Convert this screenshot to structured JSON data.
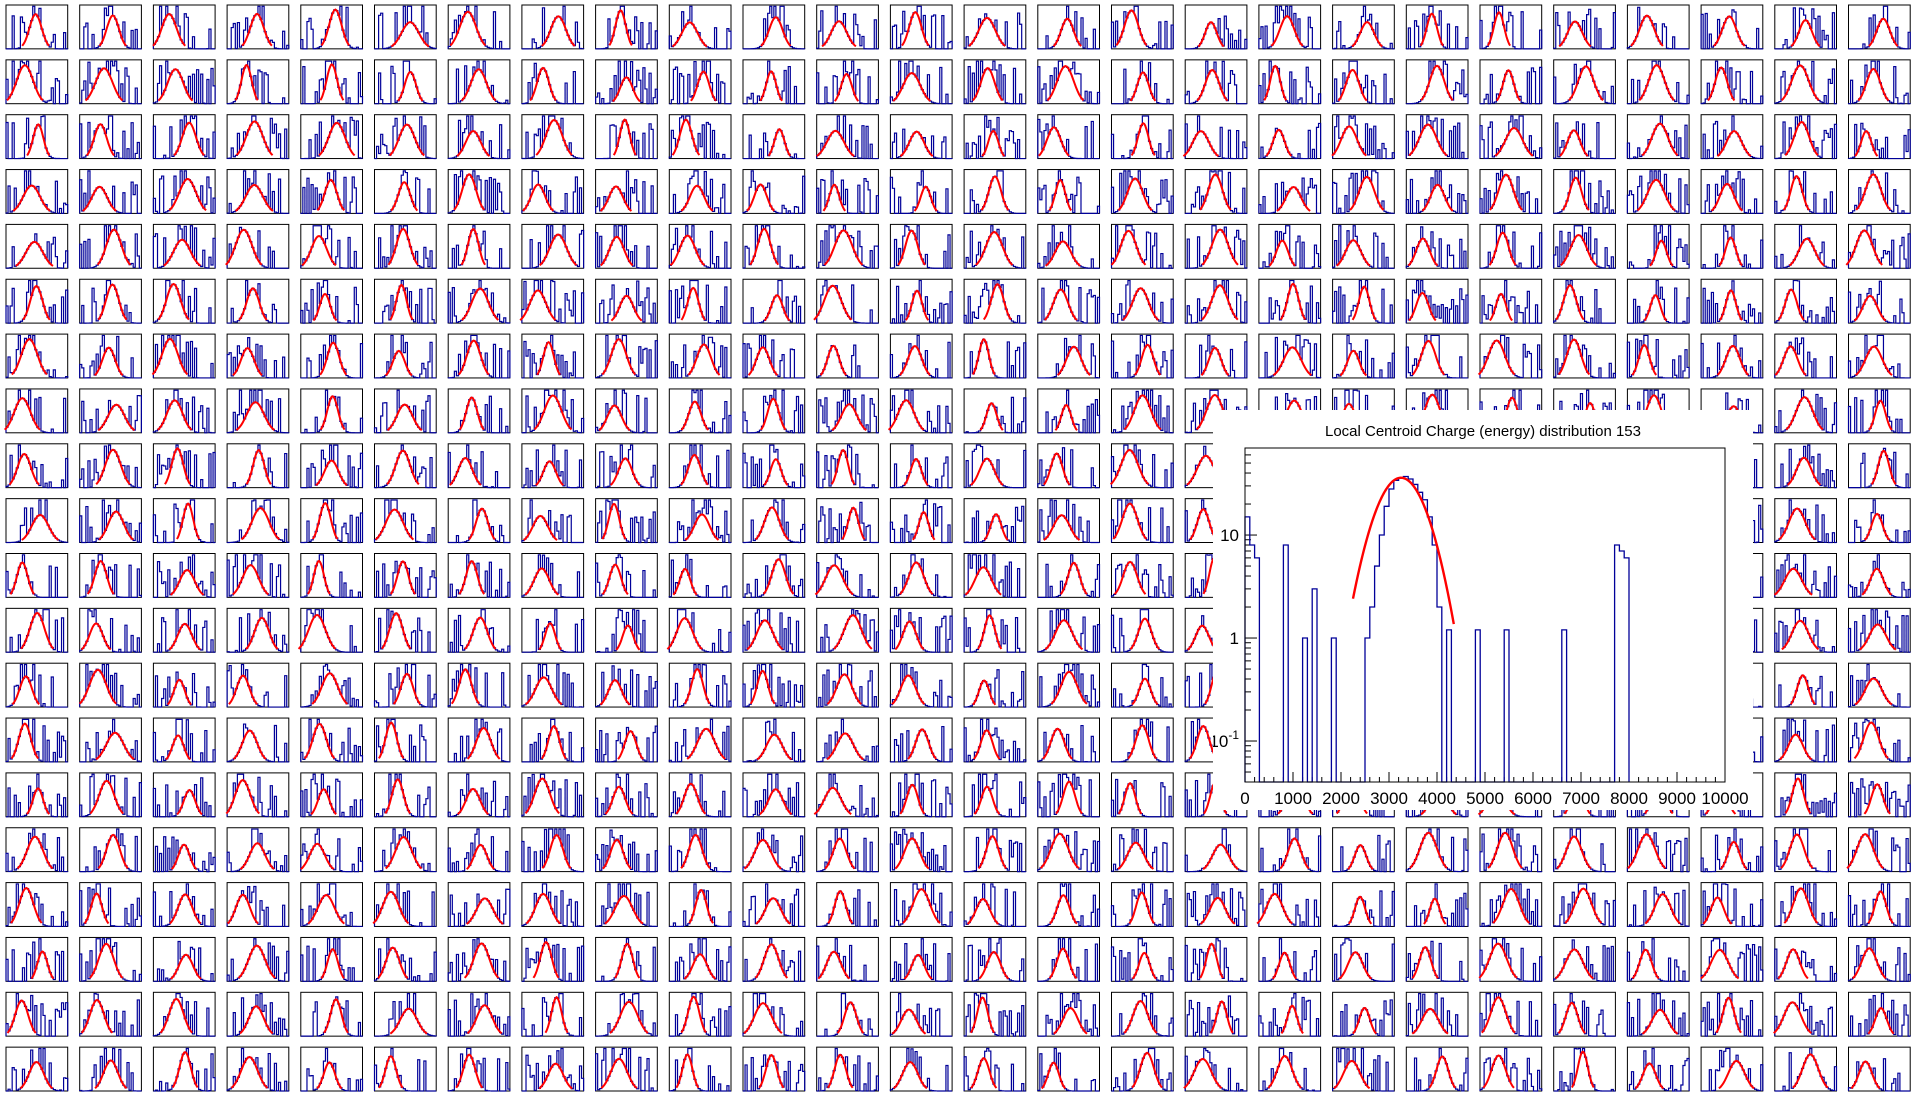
{
  "colors": {
    "histogram": "#000099",
    "fit": "#ff0000",
    "frame": "#000000",
    "background": "#ffffff"
  },
  "grid": {
    "rows": 20,
    "cols": 26,
    "description_note": ""
  },
  "chart_data": [
    {
      "type": "line",
      "title": "Local Centroid Charge (energy) distribution 153",
      "xlabel": "",
      "ylabel": "",
      "x_scale": "linear",
      "y_scale": "log",
      "xlim": [
        0,
        10000
      ],
      "ylim": [
        0.04,
        70
      ],
      "x_ticks": [
        0,
        1000,
        2000,
        3000,
        4000,
        5000,
        6000,
        7000,
        8000,
        9000,
        10000
      ],
      "x_tick_labels": [
        "0",
        "1000",
        "2000",
        "3000",
        "4000",
        "5000",
        "6000",
        "7000",
        "8000",
        "9000",
        "10000"
      ],
      "y_ticks": [
        0.1,
        1,
        10
      ],
      "y_tick_labels": [
        "10^-1",
        "1",
        "10"
      ],
      "grid": false,
      "series": [
        {
          "style": "histogram-step",
          "x": [
            0,
            100,
            200,
            300,
            400,
            500,
            600,
            700,
            800,
            900,
            1000,
            1100,
            1200,
            1300,
            1400,
            1500,
            1600,
            1700,
            1800,
            1900,
            2000,
            2100,
            2200,
            2300,
            2400,
            2500,
            2600,
            2700,
            2800,
            2900,
            3000,
            3100,
            3200,
            3300,
            3400,
            3500,
            3600,
            3700,
            3800,
            3900,
            4000,
            4100,
            4200,
            4300,
            4400,
            4500,
            4600,
            4700,
            4800,
            4900,
            5000,
            5100,
            5200,
            5300,
            5400,
            5500,
            5600,
            5700,
            5800,
            5900,
            6000,
            6100,
            6200,
            6300,
            6400,
            6500,
            6600,
            6700,
            6800,
            6900,
            7000,
            7100,
            7200,
            7300,
            7400,
            7500,
            7600,
            7700,
            7800,
            7900
          ],
          "values": [
            15,
            8,
            6,
            0,
            0,
            0,
            0,
            0,
            8,
            0,
            0,
            0,
            1,
            0,
            3,
            0,
            0,
            0,
            1,
            0,
            0,
            0,
            0,
            0,
            0,
            1,
            2,
            5,
            10,
            19,
            28,
            34,
            36,
            37,
            35,
            31,
            26,
            22,
            15,
            8,
            2,
            0,
            1.2,
            0,
            0,
            0,
            0,
            0,
            1.2,
            0,
            0,
            0,
            0,
            0,
            1.2,
            0,
            0,
            0,
            0,
            0,
            0,
            0,
            0,
            0,
            0,
            0,
            1.2,
            0,
            0,
            0,
            0,
            0,
            0,
            0,
            0,
            0,
            0,
            8,
            7,
            6
          ]
        },
        {
          "style": "fit-curve",
          "function": "gaussian",
          "amplitude": 36,
          "mean": 3250,
          "sigma": 430,
          "range": [
            2250,
            4350
          ]
        }
      ]
    }
  ]
}
